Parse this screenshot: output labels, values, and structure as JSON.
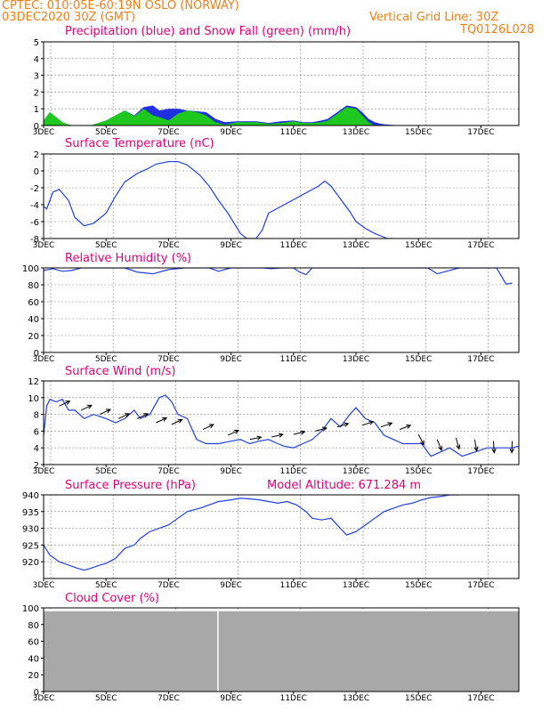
{
  "header": {
    "line1_left": "CPTEC:   010:05E-60:19N   OSLO (NORWAY)",
    "line2_left": "03DEC2020 30Z (GMT)",
    "line2_right": "Vertical Grid Line: 30Z",
    "line3_right": "TQ0126L028"
  },
  "x_labels": [
    "3DEC",
    "5DEC",
    "7DEC",
    "9DEC",
    "11DEC",
    "13DEC",
    "15DEC",
    "17DEC"
  ],
  "colors": {
    "header": "#f08018",
    "title": "#e0007a",
    "curve": "#2040e0",
    "snow": "#1ec81e",
    "rain": "#2030e0",
    "cloud": "#a8a8a8",
    "grid": "#808080"
  },
  "panels": {
    "precip": {
      "title": "Precipitation (blue) and Snow Fall (green) (mm/h)"
    },
    "temp": {
      "title": "Surface Temperature (nC)"
    },
    "rh": {
      "title": "Relative Humidity (%)"
    },
    "wind": {
      "title": "Surface Wind (m/s)"
    },
    "pres": {
      "title": "Surface Pressure (hPa)",
      "extra": "Model Altitude: 671.284 m"
    },
    "cloud": {
      "title": "Cloud Cover (%)"
    }
  },
  "chart_data": [
    {
      "type": "area",
      "name": "precip",
      "title": "Precipitation (blue) and Snow Fall (green) (mm/h)",
      "ylim": [
        0,
        5
      ],
      "yticks": [
        0,
        1,
        2,
        3,
        4,
        5
      ],
      "x_days": [
        0,
        0.2,
        0.4,
        0.6,
        0.8,
        1.0,
        1.5,
        2.0,
        2.3,
        2.6,
        2.9,
        3.2,
        3.5,
        3.7,
        4.0,
        4.3,
        4.6,
        4.9,
        5.2,
        5.5,
        5.8,
        6.2,
        6.8,
        7.2,
        7.6,
        8.0,
        8.3,
        8.6,
        8.9,
        9.1,
        9.4,
        9.7,
        10.0,
        10.2,
        10.4,
        10.6,
        10.8,
        11.0,
        11.5,
        12.0,
        12.5,
        13.0,
        13.5,
        14.5,
        15.5
      ],
      "total": [
        0.3,
        0.8,
        0.5,
        0.2,
        0.05,
        0,
        0,
        0.3,
        0.6,
        0.9,
        0.6,
        1.1,
        1.2,
        0.9,
        1.0,
        1.0,
        0.9,
        0.85,
        0.8,
        0.4,
        0.2,
        0.25,
        0.25,
        0.15,
        0.25,
        0.3,
        0.2,
        0.2,
        0.3,
        0.4,
        0.8,
        1.2,
        1.1,
        0.8,
        0.4,
        0.2,
        0.1,
        0.05,
        0,
        0,
        0,
        0,
        0,
        0,
        0
      ],
      "snow": [
        0.3,
        0.8,
        0.5,
        0.2,
        0.05,
        0,
        0,
        0.3,
        0.6,
        0.9,
        0.55,
        1.0,
        0.6,
        0.5,
        0.3,
        0.7,
        0.9,
        0.8,
        0.6,
        0.2,
        0.05,
        0.2,
        0.2,
        0.1,
        0.15,
        0.25,
        0.15,
        0.15,
        0.2,
        0.3,
        0.7,
        1.1,
        1.0,
        0.6,
        0.2,
        0,
        0,
        0,
        0,
        0,
        0,
        0,
        0,
        0,
        0
      ]
    },
    {
      "type": "line",
      "name": "temp",
      "title": "Surface Temperature (nC)",
      "ylim": [
        -8,
        2
      ],
      "yticks": [
        -8,
        -6,
        -4,
        -2,
        0,
        2
      ],
      "x_days": [
        0,
        0.1,
        0.3,
        0.5,
        0.8,
        1.0,
        1.3,
        1.6,
        2.0,
        2.3,
        2.6,
        3.0,
        3.3,
        3.6,
        4.0,
        4.3,
        4.6,
        5.0,
        5.3,
        5.6,
        5.9,
        6.1,
        6.3,
        6.5,
        6.8,
        7.0,
        7.1,
        7.2,
        8.8,
        9.0,
        9.2,
        9.4,
        9.6,
        9.8,
        10.0,
        10.3,
        10.6,
        11.0,
        11.2
      ],
      "y": [
        -4.2,
        -4.5,
        -2.5,
        -2.2,
        -3.5,
        -5.5,
        -6.5,
        -6.2,
        -5.0,
        -3.0,
        -1.3,
        -0.3,
        0.2,
        0.8,
        1.1,
        1.1,
        0.7,
        -0.5,
        -1.8,
        -3.5,
        -5.0,
        -6.2,
        -7.4,
        -8.0,
        -8.0,
        -7.0,
        -6.0,
        -5.0,
        -1.8,
        -1.2,
        -1.8,
        -2.8,
        -3.8,
        -4.8,
        -6.0,
        -6.8,
        -7.4,
        -8.0,
        -8.0
      ]
    },
    {
      "type": "line",
      "name": "rh",
      "title": "Relative Humidity (%)",
      "ylim": [
        0,
        100
      ],
      "yticks": [
        0,
        20,
        40,
        60,
        80,
        100
      ],
      "x_days": [
        0,
        0.3,
        0.6,
        0.9,
        1.2,
        2.0,
        2.6,
        3.0,
        3.5,
        4.0,
        4.5,
        5.0,
        5.3,
        5.6,
        6.0,
        6.5,
        7.0,
        7.3,
        7.6,
        8.0,
        8.2,
        8.4,
        8.5,
        8.6,
        9.0,
        10.0,
        12.0,
        12.3,
        12.6,
        13.0,
        13.3,
        13.6,
        14.0,
        14.2,
        14.5,
        14.8,
        15.0
      ],
      "y": [
        97,
        99,
        96,
        97,
        100,
        100,
        100,
        95,
        93,
        98,
        100,
        100,
        100,
        96,
        100,
        100,
        100,
        99,
        100,
        100,
        95,
        92,
        96,
        100,
        100,
        100,
        100,
        100,
        93,
        97,
        100,
        100,
        100,
        100,
        100,
        81,
        82
      ]
    },
    {
      "type": "line",
      "name": "wind",
      "title": "Surface Wind (m/s)",
      "ylim": [
        2,
        12
      ],
      "yticks": [
        2,
        4,
        6,
        8,
        10,
        12
      ],
      "x_days": [
        0,
        0.1,
        0.2,
        0.4,
        0.6,
        0.8,
        1.0,
        1.3,
        1.6,
        2.0,
        2.3,
        2.6,
        2.9,
        3.1,
        3.4,
        3.7,
        3.9,
        4.1,
        4.3,
        4.6,
        4.9,
        5.2,
        5.6,
        6.0,
        6.3,
        6.6,
        6.9,
        7.2,
        7.5,
        7.7,
        8.0,
        8.3,
        8.6,
        8.9,
        9.2,
        9.5,
        9.8,
        10.0,
        10.3,
        10.6,
        10.9,
        11.2,
        11.5,
        11.8,
        12.1,
        12.4,
        12.7,
        13.0,
        13.4,
        13.8,
        14.2,
        14.6,
        15.0,
        15.2
      ],
      "y": [
        5.5,
        9,
        9.8,
        9.5,
        9.8,
        8.5,
        8.5,
        7.5,
        8,
        7.5,
        7,
        7.5,
        8.5,
        7.5,
        8,
        10,
        10.3,
        9.5,
        8,
        7.5,
        5,
        4.5,
        4.5,
        4.8,
        5,
        4.5,
        4.8,
        5,
        4.5,
        4.2,
        4,
        4.5,
        5,
        6,
        7.5,
        6.5,
        8,
        8.8,
        7.5,
        7,
        5.5,
        5,
        4.5,
        4.5,
        4.5,
        3,
        3.5,
        4,
        3,
        3.5,
        4,
        4,
        4,
        4.2
      ]
    },
    {
      "type": "line",
      "name": "pres",
      "title": "Surface Pressure (hPa)",
      "ylim": [
        915,
        940
      ],
      "yticks": [
        920,
        925,
        930,
        935,
        940
      ],
      "x_days": [
        0,
        0.2,
        0.5,
        0.8,
        1.1,
        1.3,
        1.5,
        1.8,
        2.0,
        2.3,
        2.6,
        2.9,
        3.1,
        3.4,
        3.7,
        4.0,
        4.3,
        4.6,
        5.0,
        5.3,
        5.6,
        6.0,
        6.3,
        6.6,
        6.9,
        7.2,
        7.5,
        7.8,
        8.1,
        8.4,
        8.6,
        8.9,
        9.2,
        9.5,
        9.7,
        10.0,
        10.3,
        10.6,
        10.9,
        11.2,
        11.5,
        11.8,
        12.1,
        12.4,
        12.7,
        13.0,
        13.3
      ],
      "y": [
        925,
        922,
        920,
        919,
        918,
        917.5,
        918,
        919,
        919.5,
        921,
        924,
        925,
        927,
        929,
        930,
        931,
        933,
        935,
        936,
        937,
        938,
        938.5,
        939,
        938.8,
        938.5,
        938,
        937.5,
        938,
        937,
        935,
        933,
        932.5,
        933,
        930,
        928,
        929,
        931,
        933,
        935,
        936,
        937,
        937.5,
        938.5,
        939.2,
        939.5,
        940,
        940
      ]
    },
    {
      "type": "area",
      "name": "cloud",
      "title": "Cloud Cover (%)",
      "ylim": [
        0,
        100
      ],
      "yticks": [
        0,
        20,
        40,
        60,
        80,
        100
      ],
      "x_days": [
        0,
        15.2
      ],
      "y": [
        96,
        96
      ]
    }
  ]
}
